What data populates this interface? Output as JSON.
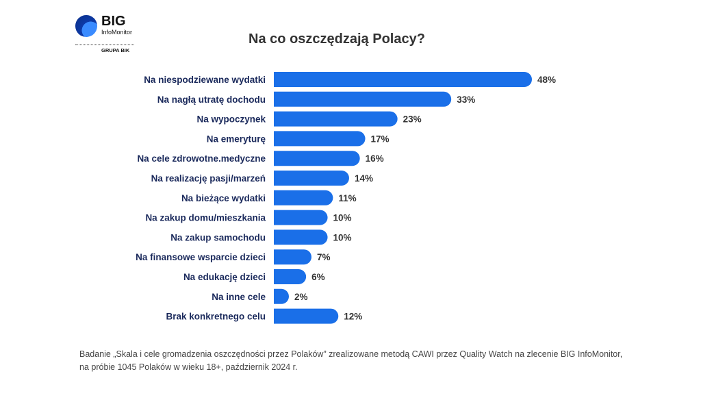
{
  "logo": {
    "brand": "BIG",
    "sub": "InfoMonitor",
    "group": "GRUPA BIK"
  },
  "colors": {
    "bar": "#1a6fe8",
    "label": "#1b2a5c",
    "value": "#333333"
  },
  "chart_data": {
    "type": "bar",
    "orientation": "horizontal",
    "title": "Na co oszczędzają Polacy?",
    "categories": [
      "Na niespodziewane wydatki",
      "Na nagłą utratę dochodu",
      "Na wypoczynek",
      "Na emeryturę",
      "Na cele zdrowotne.medyczne",
      "Na realizację pasji/marzeń",
      "Na bieżące wydatki",
      "Na zakup domu/mieszkania",
      "Na zakup samochodu",
      "Na finansowe wsparcie dzieci",
      "Na edukację dzieci",
      "Na inne cele",
      "Brak konkretnego celu"
    ],
    "values": [
      48,
      33,
      23,
      17,
      16,
      14,
      11,
      10,
      10,
      7,
      6,
      2,
      12
    ],
    "value_labels": [
      "48%",
      "33%",
      "23%",
      "17%",
      "16%",
      "14%",
      "11%",
      "10%",
      "10%",
      "7%",
      "6%",
      "2%",
      "12%"
    ],
    "xlabel": "",
    "ylabel": "",
    "xlim": [
      0,
      48
    ],
    "grid": false
  },
  "footnote": "Badanie „Skala i cele gromadzenia oszczędności przez Polaków” zrealizowane metodą CAWI przez Quality Watch na zlecenie BIG InfoMonitor, na próbie 1045 Polaków w wieku 18+, październik 2024 r."
}
